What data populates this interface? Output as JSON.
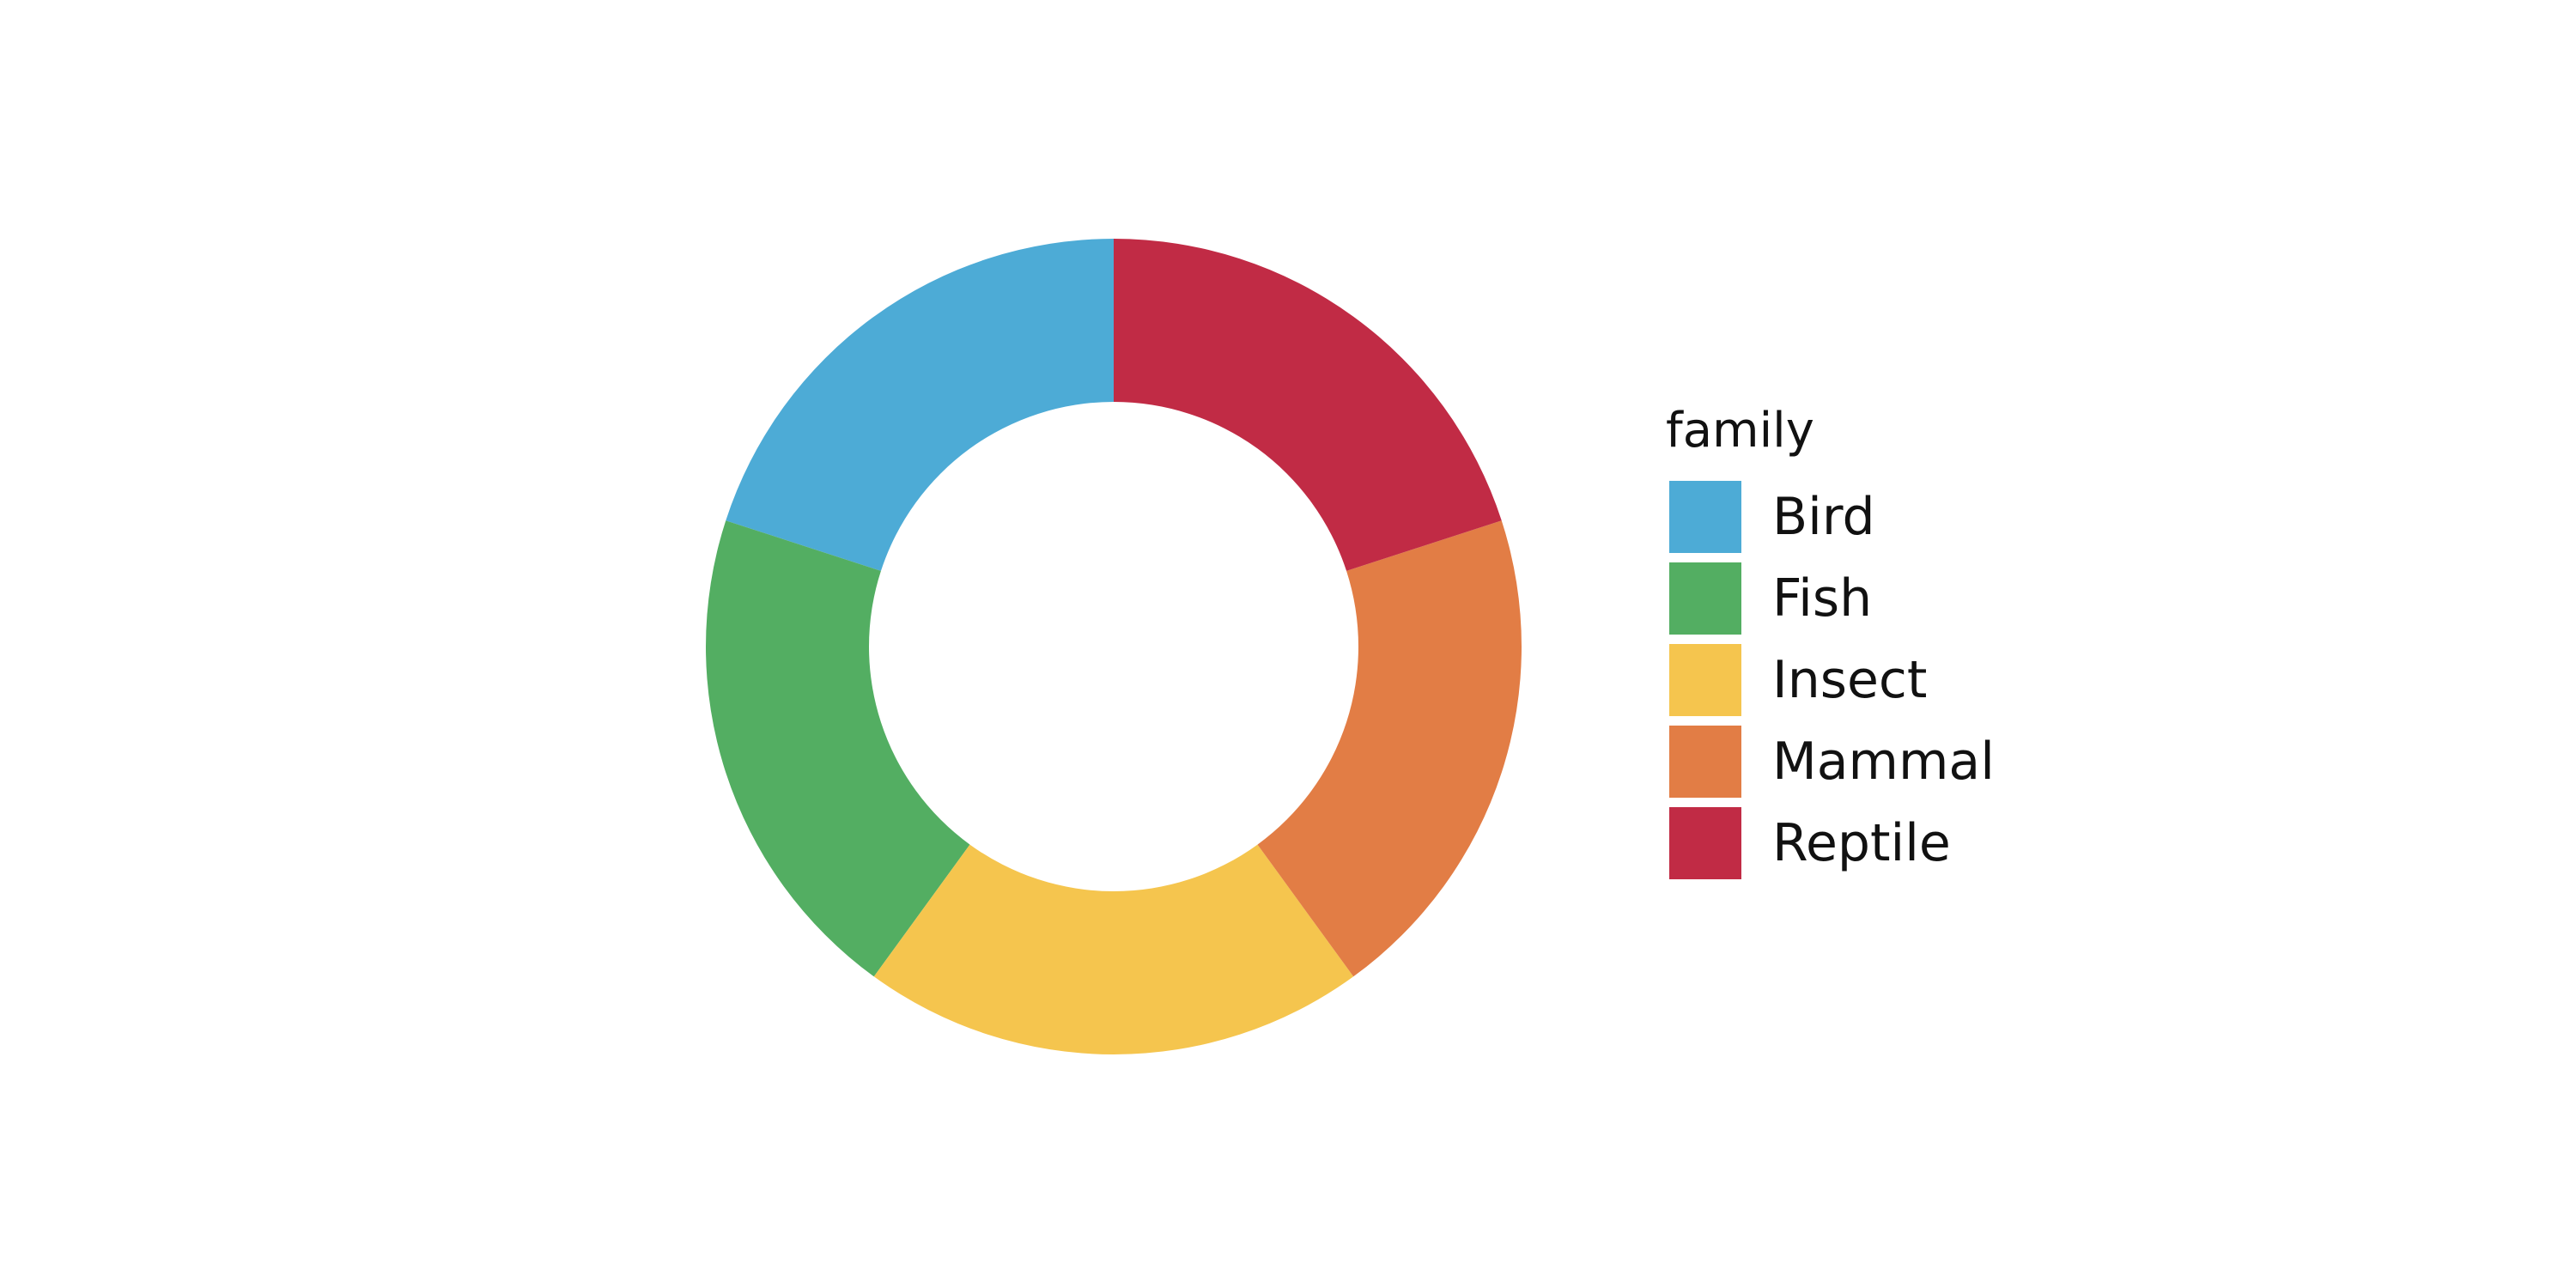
{
  "chart_data": {
    "type": "pie",
    "variant": "donut",
    "legend_title": "family",
    "legend_position": "right",
    "categories": [
      "Bird",
      "Fish",
      "Insect",
      "Mammal",
      "Reptile"
    ],
    "values": [
      1,
      1,
      1,
      1,
      1
    ],
    "colors": [
      "#4dabd6",
      "#53ae62",
      "#f5c54e",
      "#e27d45",
      "#c12b45"
    ]
  }
}
